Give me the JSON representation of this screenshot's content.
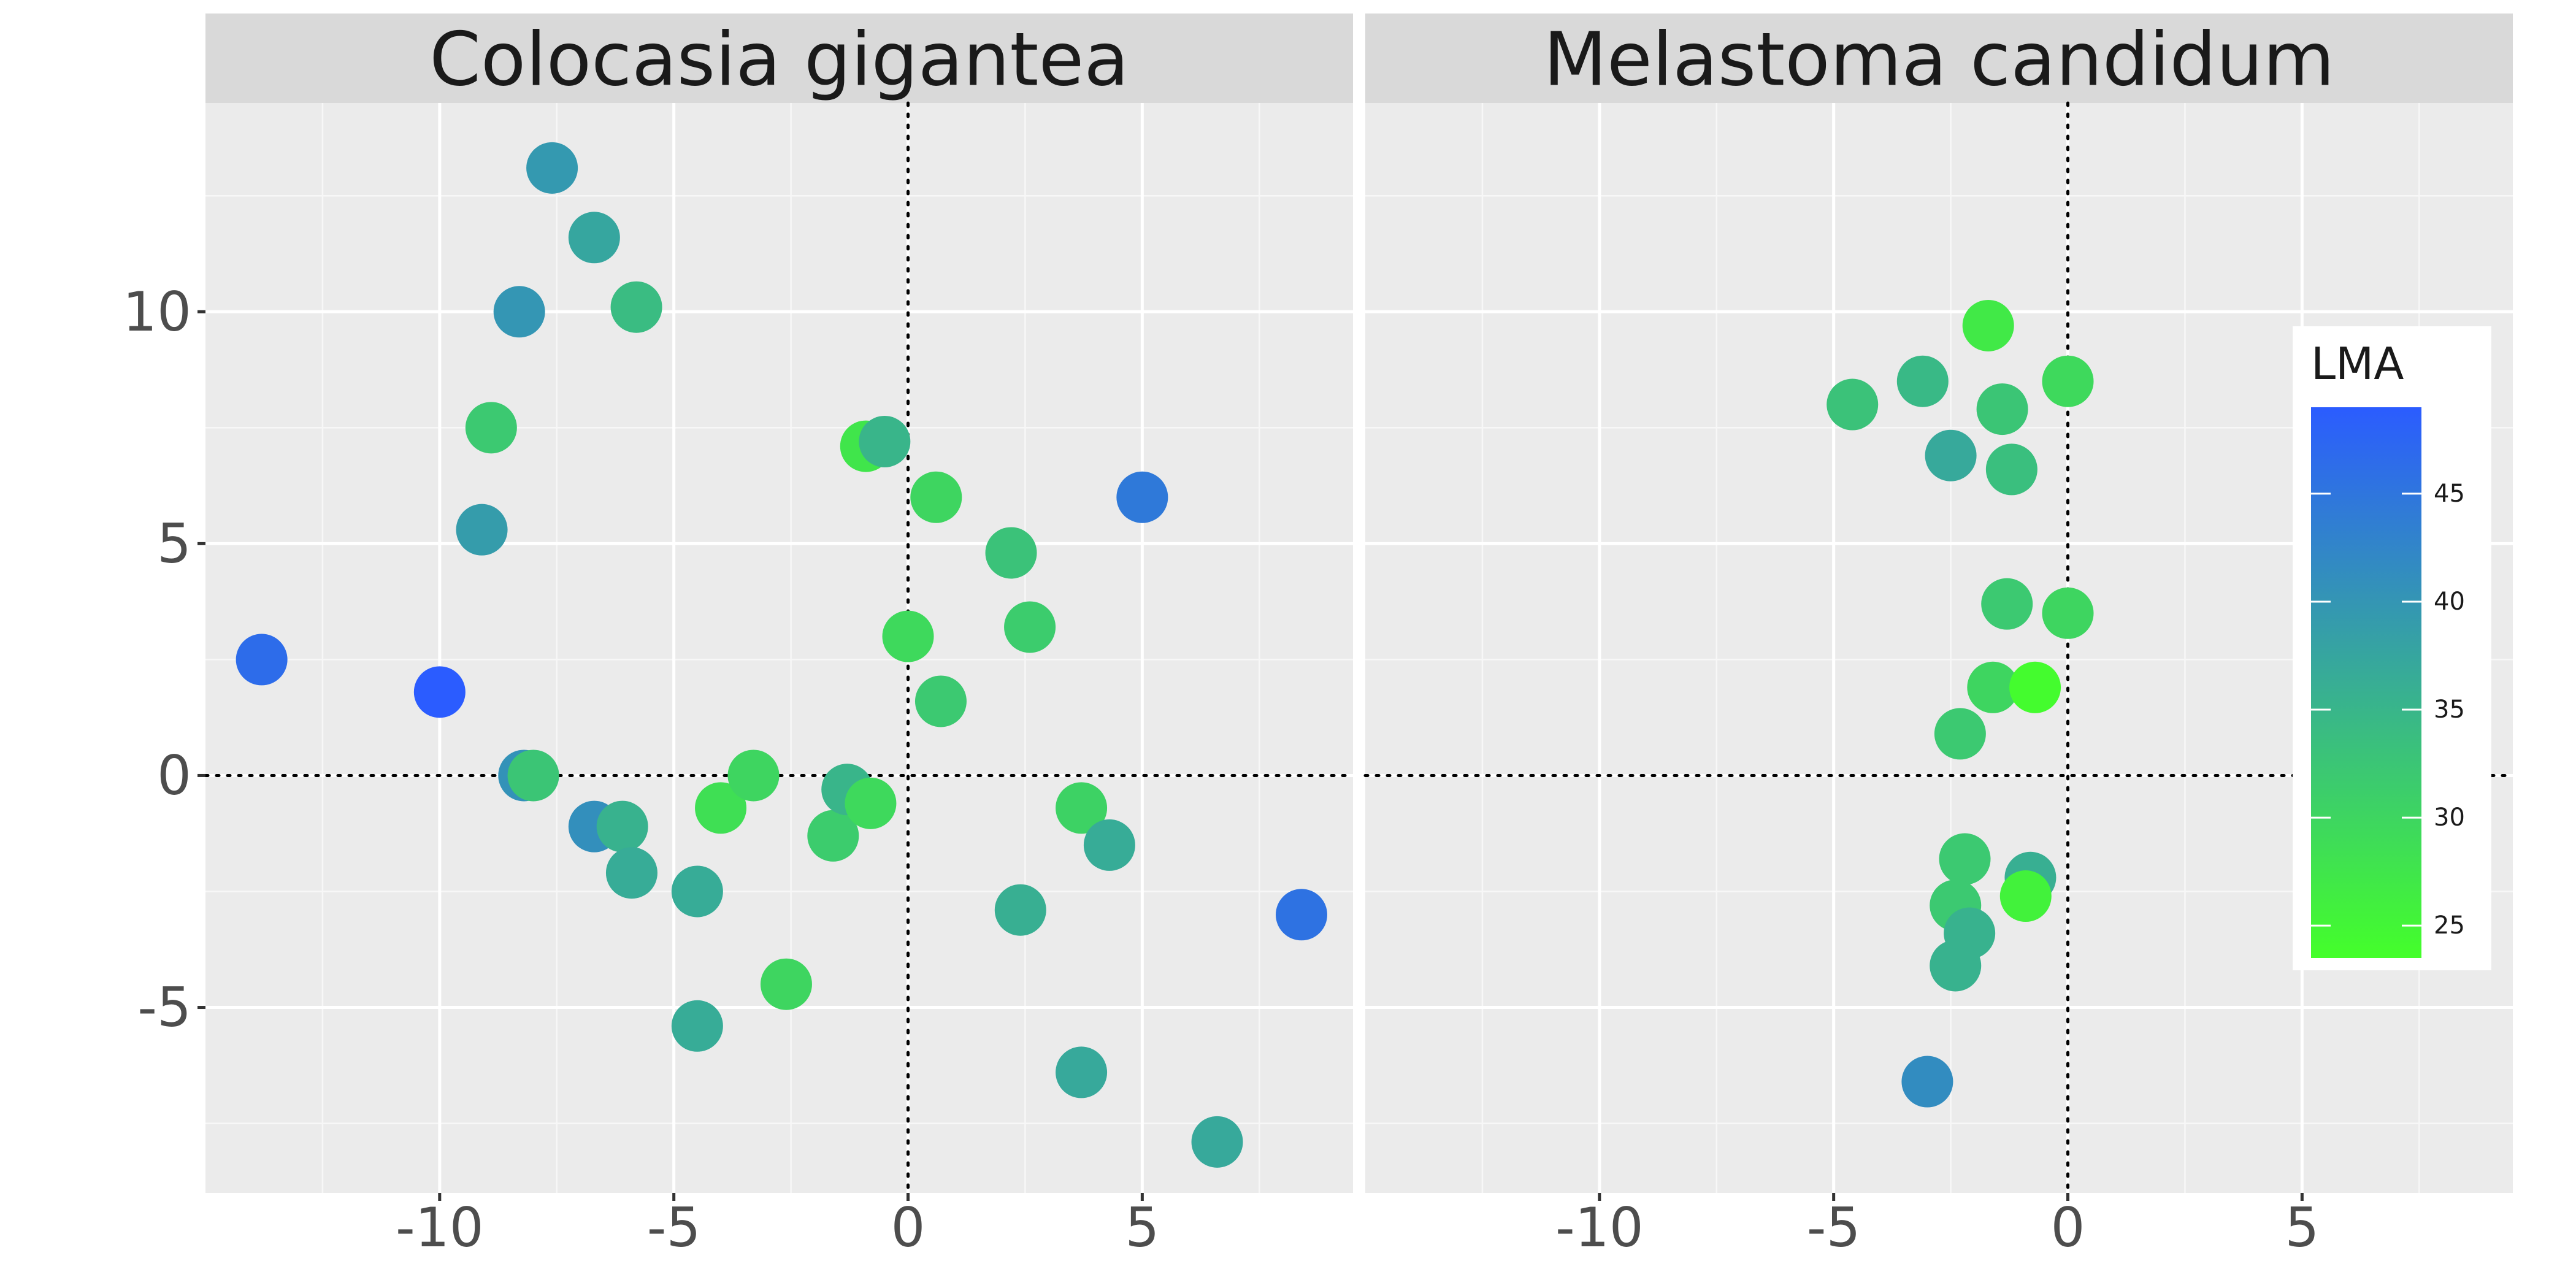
{
  "chart_data": {
    "type": "scatter",
    "xlim": [
      -15,
      9.5
    ],
    "ylim": [
      -9,
      14.5
    ],
    "x_ticks": [
      -10,
      -5,
      0,
      5
    ],
    "y_ticks": [
      -5,
      0,
      5,
      10
    ],
    "x_tick_labels": [
      "-10",
      "-5",
      "0",
      "5"
    ],
    "y_tick_labels": [
      "-5",
      "0",
      "5",
      "10"
    ],
    "reference_lines": {
      "x": 0,
      "y": 0,
      "style": "dotted"
    },
    "grid": true,
    "legend": {
      "title": "LMA",
      "position": "right",
      "range": [
        23.5,
        49.0
      ],
      "ticks": [
        25,
        30,
        35,
        40,
        45
      ],
      "tick_labels": [
        "25",
        "30",
        "35",
        "40",
        "45"
      ],
      "color_low": "#44ff2a",
      "color_high": "#2b5cff"
    },
    "panels": [
      {
        "title": "Colocasia gigantea",
        "points": [
          {
            "x": -7.6,
            "y": 13.1,
            "lma": 39.5
          },
          {
            "x": -6.7,
            "y": 11.6,
            "lma": 37.5
          },
          {
            "x": -8.3,
            "y": 10.0,
            "lma": 40.0
          },
          {
            "x": -5.8,
            "y": 10.1,
            "lma": 34.0
          },
          {
            "x": -8.9,
            "y": 7.5,
            "lma": 32.0
          },
          {
            "x": -9.1,
            "y": 5.3,
            "lma": 39.0
          },
          {
            "x": -13.8,
            "y": 2.5,
            "lma": 46.5
          },
          {
            "x": -10.0,
            "y": 1.8,
            "lma": 49.0
          },
          {
            "x": -8.2,
            "y": 0.0,
            "lma": 40.5
          },
          {
            "x": -8.0,
            "y": 0.0,
            "lma": 32.5
          },
          {
            "x": -6.7,
            "y": -1.1,
            "lma": 41.0
          },
          {
            "x": -6.1,
            "y": -1.1,
            "lma": 35.5
          },
          {
            "x": -5.9,
            "y": -2.1,
            "lma": 36.5
          },
          {
            "x": -4.5,
            "y": -2.5,
            "lma": 36.5
          },
          {
            "x": -4.5,
            "y": -5.4,
            "lma": 36.5
          },
          {
            "x": -4.0,
            "y": -0.7,
            "lma": 28.5
          },
          {
            "x": -3.3,
            "y": 0.0,
            "lma": 30.0
          },
          {
            "x": -2.6,
            "y": -4.5,
            "lma": 30.0
          },
          {
            "x": -1.6,
            "y": -1.3,
            "lma": 31.5
          },
          {
            "x": -1.3,
            "y": -0.3,
            "lma": 35.0
          },
          {
            "x": -0.8,
            "y": -0.6,
            "lma": 29.5
          },
          {
            "x": -0.9,
            "y": 7.1,
            "lma": 27.5
          },
          {
            "x": -0.5,
            "y": 7.2,
            "lma": 35.0
          },
          {
            "x": 0.0,
            "y": 3.0,
            "lma": 29.5
          },
          {
            "x": 0.6,
            "y": 6.0,
            "lma": 30.0
          },
          {
            "x": 0.7,
            "y": 1.6,
            "lma": 32.0
          },
          {
            "x": 2.2,
            "y": 4.8,
            "lma": 33.0
          },
          {
            "x": 2.4,
            "y": -2.9,
            "lma": 36.0
          },
          {
            "x": 2.6,
            "y": 3.2,
            "lma": 31.5
          },
          {
            "x": 3.7,
            "y": -0.7,
            "lma": 30.5
          },
          {
            "x": 3.7,
            "y": -6.4,
            "lma": 37.0
          },
          {
            "x": 4.3,
            "y": -1.5,
            "lma": 36.5
          },
          {
            "x": 5.0,
            "y": 6.0,
            "lma": 44.5
          },
          {
            "x": 6.6,
            "y": -7.9,
            "lma": 37.0
          },
          {
            "x": 8.4,
            "y": -3.0,
            "lma": 45.5
          }
        ]
      },
      {
        "title": "Melastoma candidum",
        "points": [
          {
            "x": -1.7,
            "y": 9.7,
            "lma": 27.0
          },
          {
            "x": -3.1,
            "y": 8.5,
            "lma": 34.5
          },
          {
            "x": -4.6,
            "y": 8.0,
            "lma": 33.0
          },
          {
            "x": 0.0,
            "y": 8.5,
            "lma": 29.5
          },
          {
            "x": -1.4,
            "y": 7.9,
            "lma": 32.5
          },
          {
            "x": -2.5,
            "y": 6.9,
            "lma": 37.0
          },
          {
            "x": -1.2,
            "y": 6.6,
            "lma": 33.5
          },
          {
            "x": -1.3,
            "y": 3.7,
            "lma": 32.0
          },
          {
            "x": 0.0,
            "y": 3.5,
            "lma": 30.0
          },
          {
            "x": -1.6,
            "y": 1.9,
            "lma": 30.0
          },
          {
            "x": -0.7,
            "y": 1.9,
            "lma": 24.0
          },
          {
            "x": -2.3,
            "y": 0.9,
            "lma": 32.0
          },
          {
            "x": -2.2,
            "y": -1.8,
            "lma": 32.0
          },
          {
            "x": -0.8,
            "y": -2.2,
            "lma": 36.0
          },
          {
            "x": -0.9,
            "y": -2.6,
            "lma": 25.5
          },
          {
            "x": -2.4,
            "y": -2.8,
            "lma": 32.0
          },
          {
            "x": -2.1,
            "y": -3.4,
            "lma": 35.5
          },
          {
            "x": -2.4,
            "y": -4.1,
            "lma": 35.5
          },
          {
            "x": -3.0,
            "y": -6.6,
            "lma": 41.5
          }
        ]
      }
    ]
  }
}
